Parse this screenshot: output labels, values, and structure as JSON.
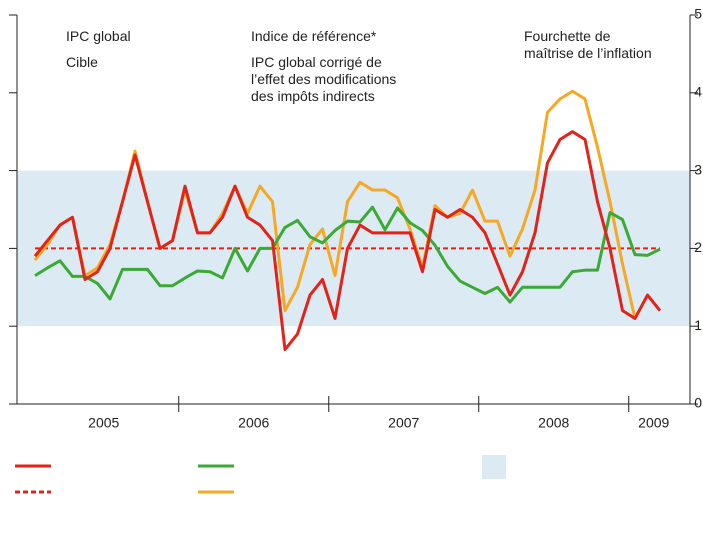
{
  "chart_data": {
    "type": "line",
    "categories": [
      null,
      null,
      null,
      null,
      null,
      "2005",
      null,
      null,
      null,
      null,
      null,
      null,
      null,
      null,
      null,
      null,
      null,
      "2006",
      null,
      null,
      null,
      null,
      null,
      null,
      null,
      null,
      null,
      null,
      null,
      "2007",
      null,
      null,
      null,
      null,
      null,
      null,
      null,
      null,
      null,
      null,
      null,
      "2008",
      null,
      null,
      null,
      null,
      null,
      null,
      null,
      "2009",
      null
    ],
    "ylim": [
      0,
      5
    ],
    "yticks": [
      0,
      1,
      2,
      3,
      4,
      5
    ],
    "band": {
      "name": "Fourchette de\nmaîtrise de l’inflation",
      "range": [
        1,
        3
      ],
      "color": "#dceaf4"
    },
    "target": {
      "name": "Cible",
      "value": 2,
      "color": "#e2231a"
    },
    "series": [
      {
        "name": "IPC global",
        "color": "#e2231a",
        "values": [
          1.9,
          2.1,
          2.3,
          2.4,
          1.6,
          1.7,
          2.0,
          2.6,
          3.2,
          2.6,
          2.0,
          2.1,
          2.8,
          2.2,
          2.2,
          2.4,
          2.8,
          2.4,
          2.3,
          2.1,
          0.7,
          0.9,
          1.4,
          1.6,
          1.1,
          2.0,
          2.3,
          2.2,
          2.2,
          2.2,
          2.2,
          1.7,
          2.5,
          2.4,
          2.5,
          2.4,
          2.2,
          1.8,
          1.4,
          1.7,
          2.2,
          3.1,
          3.4,
          3.5,
          3.4,
          2.6,
          2.0,
          1.2,
          1.1,
          1.4,
          1.2
        ]
      },
      {
        "name": "Indice de référence*",
        "color": "#3aaa35",
        "values": [
          1.65,
          1.75,
          1.84,
          1.64,
          1.64,
          1.55,
          1.35,
          1.73,
          1.73,
          1.73,
          1.52,
          1.52,
          1.62,
          1.71,
          1.7,
          1.62,
          2.0,
          1.71,
          2.0,
          2.0,
          2.27,
          2.36,
          2.15,
          2.07,
          2.23,
          2.35,
          2.34,
          2.53,
          2.24,
          2.52,
          2.33,
          2.23,
          2.04,
          1.77,
          1.58,
          1.5,
          1.42,
          1.5,
          1.31,
          1.5,
          1.5,
          1.5,
          1.5,
          1.7,
          1.72,
          1.72,
          2.46,
          2.37,
          1.92,
          1.91,
          1.99
        ]
      },
      {
        "name": "IPC global corrigé de\nl’effet des modifications\ndes impôts indirects",
        "color": "#f7a823",
        "values": [
          1.85,
          2.05,
          2.3,
          2.4,
          1.65,
          1.75,
          2.05,
          2.6,
          3.25,
          2.6,
          2.0,
          2.1,
          2.75,
          2.2,
          2.2,
          2.45,
          2.8,
          2.45,
          2.8,
          2.6,
          1.2,
          1.5,
          2.05,
          2.25,
          1.65,
          2.6,
          2.85,
          2.75,
          2.75,
          2.65,
          2.25,
          1.75,
          2.55,
          2.4,
          2.45,
          2.75,
          2.35,
          2.35,
          1.9,
          2.25,
          2.75,
          3.75,
          3.92,
          4.02,
          3.92,
          3.3,
          2.6,
          1.8,
          1.1,
          null,
          null
        ]
      }
    ]
  }
}
